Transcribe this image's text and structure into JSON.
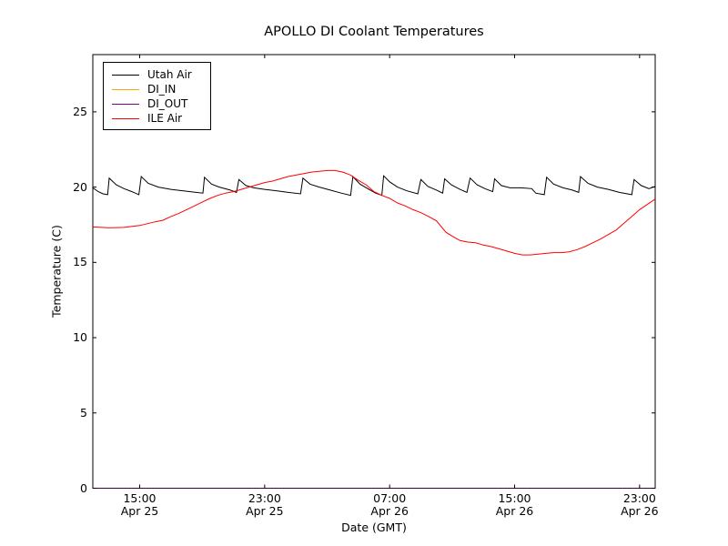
{
  "window": {
    "background": "#ffffff"
  },
  "title": "APOLLO DI Coolant Temperatures",
  "xlabel": "Date (GMT)",
  "ylabel": "Temperature (C)",
  "axis_color": "#000000",
  "chart_data": {
    "type": "line",
    "title": "APOLLO DI Coolant Temperatures",
    "xlabel": "Date (GMT)",
    "ylabel": "Temperature (C)",
    "x_unit": "hours since 12:00 GMT Apr 25",
    "xlim": [
      0,
      36
    ],
    "ylim": [
      0,
      28.8
    ],
    "grid": false,
    "legend_position": "upper left",
    "yticks": [
      {
        "v": 0,
        "label": "0"
      },
      {
        "v": 5,
        "label": "5"
      },
      {
        "v": 10,
        "label": "10"
      },
      {
        "v": 15,
        "label": "15"
      },
      {
        "v": 20,
        "label": "20"
      },
      {
        "v": 25,
        "label": "25"
      }
    ],
    "xticks": [
      {
        "t": 3,
        "time": "15:00",
        "date": "Apr 25"
      },
      {
        "t": 11,
        "time": "23:00",
        "date": "Apr 25"
      },
      {
        "t": 19,
        "time": "07:00",
        "date": "Apr 26"
      },
      {
        "t": 27,
        "time": "15:00",
        "date": "Apr 26"
      },
      {
        "t": 35,
        "time": "23:00",
        "date": "Apr 26"
      }
    ],
    "series": [
      {
        "name": "Utah Air",
        "color": "#000000",
        "points": [
          [
            0,
            19.95
          ],
          [
            0.35,
            19.7
          ],
          [
            0.65,
            19.55
          ],
          [
            0.95,
            19.5
          ],
          [
            1.05,
            20.6
          ],
          [
            1.5,
            20.15
          ],
          [
            2.0,
            19.9
          ],
          [
            2.5,
            19.7
          ],
          [
            2.95,
            19.5
          ],
          [
            3.1,
            20.7
          ],
          [
            3.55,
            20.25
          ],
          [
            4.2,
            20.0
          ],
          [
            5.0,
            19.85
          ],
          [
            5.8,
            19.75
          ],
          [
            6.6,
            19.65
          ],
          [
            7.05,
            19.6
          ],
          [
            7.15,
            20.65
          ],
          [
            7.6,
            20.2
          ],
          [
            8.1,
            20.0
          ],
          [
            8.8,
            19.8
          ],
          [
            9.2,
            19.65
          ],
          [
            9.35,
            20.5
          ],
          [
            9.8,
            20.1
          ],
          [
            10.3,
            19.95
          ],
          [
            11.0,
            19.85
          ],
          [
            11.8,
            19.75
          ],
          [
            12.5,
            19.65
          ],
          [
            13.3,
            19.55
          ],
          [
            13.45,
            20.6
          ],
          [
            13.9,
            20.2
          ],
          [
            14.5,
            20.0
          ],
          [
            15.2,
            19.8
          ],
          [
            15.9,
            19.6
          ],
          [
            16.5,
            19.45
          ],
          [
            16.65,
            20.7
          ],
          [
            17.1,
            20.2
          ],
          [
            17.6,
            19.9
          ],
          [
            18.1,
            19.6
          ],
          [
            18.5,
            19.45
          ],
          [
            18.62,
            20.75
          ],
          [
            19.0,
            20.35
          ],
          [
            19.5,
            20.0
          ],
          [
            20.1,
            19.75
          ],
          [
            20.8,
            19.55
          ],
          [
            21.0,
            20.5
          ],
          [
            21.45,
            20.05
          ],
          [
            22.0,
            19.8
          ],
          [
            22.4,
            19.6
          ],
          [
            22.52,
            20.55
          ],
          [
            22.95,
            20.15
          ],
          [
            23.5,
            19.85
          ],
          [
            23.95,
            19.65
          ],
          [
            24.15,
            20.6
          ],
          [
            24.6,
            20.15
          ],
          [
            25.1,
            19.9
          ],
          [
            25.6,
            19.7
          ],
          [
            25.72,
            20.55
          ],
          [
            26.15,
            20.1
          ],
          [
            26.7,
            19.95
          ],
          [
            27.4,
            19.95
          ],
          [
            28.1,
            19.9
          ],
          [
            28.35,
            19.6
          ],
          [
            28.9,
            19.5
          ],
          [
            29.05,
            20.65
          ],
          [
            29.5,
            20.2
          ],
          [
            30.1,
            19.95
          ],
          [
            30.7,
            19.8
          ],
          [
            31.1,
            19.65
          ],
          [
            31.22,
            20.7
          ],
          [
            31.7,
            20.25
          ],
          [
            32.3,
            20.0
          ],
          [
            33.0,
            19.85
          ],
          [
            33.7,
            19.65
          ],
          [
            34.5,
            19.5
          ],
          [
            34.65,
            20.5
          ],
          [
            35.1,
            20.1
          ],
          [
            35.6,
            19.9
          ],
          [
            36,
            20.05
          ]
        ]
      },
      {
        "name": "DI_IN",
        "color": "#ffa500",
        "points": [
          [
            0,
            0
          ],
          [
            36,
            0
          ]
        ]
      },
      {
        "name": "DI_OUT",
        "color": "#800080",
        "points": [
          [
            0,
            0
          ],
          [
            36,
            0
          ]
        ]
      },
      {
        "name": "ILE Air",
        "color": "#ff0000",
        "points": [
          [
            0,
            17.35
          ],
          [
            1,
            17.3
          ],
          [
            2,
            17.32
          ],
          [
            3,
            17.45
          ],
          [
            4,
            17.7
          ],
          [
            4.5,
            17.8
          ],
          [
            5,
            18.05
          ],
          [
            5.5,
            18.25
          ],
          [
            6,
            18.5
          ],
          [
            6.5,
            18.75
          ],
          [
            7,
            19.0
          ],
          [
            7.5,
            19.25
          ],
          [
            8,
            19.45
          ],
          [
            8.5,
            19.6
          ],
          [
            9,
            19.7
          ],
          [
            9.5,
            19.85
          ],
          [
            10,
            20.0
          ],
          [
            10.5,
            20.15
          ],
          [
            11,
            20.3
          ],
          [
            11.5,
            20.4
          ],
          [
            12,
            20.55
          ],
          [
            12.5,
            20.7
          ],
          [
            13,
            20.8
          ],
          [
            13.5,
            20.9
          ],
          [
            14,
            21.0
          ],
          [
            14.5,
            21.05
          ],
          [
            15,
            21.1
          ],
          [
            15.5,
            21.1
          ],
          [
            16,
            21.0
          ],
          [
            16.5,
            20.8
          ],
          [
            17,
            20.45
          ],
          [
            17.5,
            20.15
          ],
          [
            18,
            19.7
          ],
          [
            18.5,
            19.45
          ],
          [
            19,
            19.25
          ],
          [
            19.5,
            18.95
          ],
          [
            20,
            18.75
          ],
          [
            20.5,
            18.5
          ],
          [
            21,
            18.3
          ],
          [
            21.5,
            18.05
          ],
          [
            22,
            17.75
          ],
          [
            22.6,
            17.0
          ],
          [
            23,
            16.75
          ],
          [
            23.5,
            16.45
          ],
          [
            24,
            16.35
          ],
          [
            24.5,
            16.3
          ],
          [
            25,
            16.15
          ],
          [
            25.5,
            16.05
          ],
          [
            26,
            15.9
          ],
          [
            26.5,
            15.75
          ],
          [
            27,
            15.6
          ],
          [
            27.5,
            15.5
          ],
          [
            28,
            15.5
          ],
          [
            28.5,
            15.55
          ],
          [
            29,
            15.6
          ],
          [
            29.5,
            15.65
          ],
          [
            30,
            15.65
          ],
          [
            30.5,
            15.7
          ],
          [
            31,
            15.85
          ],
          [
            31.5,
            16.05
          ],
          [
            32,
            16.3
          ],
          [
            32.5,
            16.55
          ],
          [
            33,
            16.85
          ],
          [
            33.5,
            17.15
          ],
          [
            34,
            17.6
          ],
          [
            34.5,
            18.05
          ],
          [
            35,
            18.5
          ],
          [
            35.5,
            18.85
          ],
          [
            36,
            19.2
          ]
        ]
      }
    ]
  }
}
